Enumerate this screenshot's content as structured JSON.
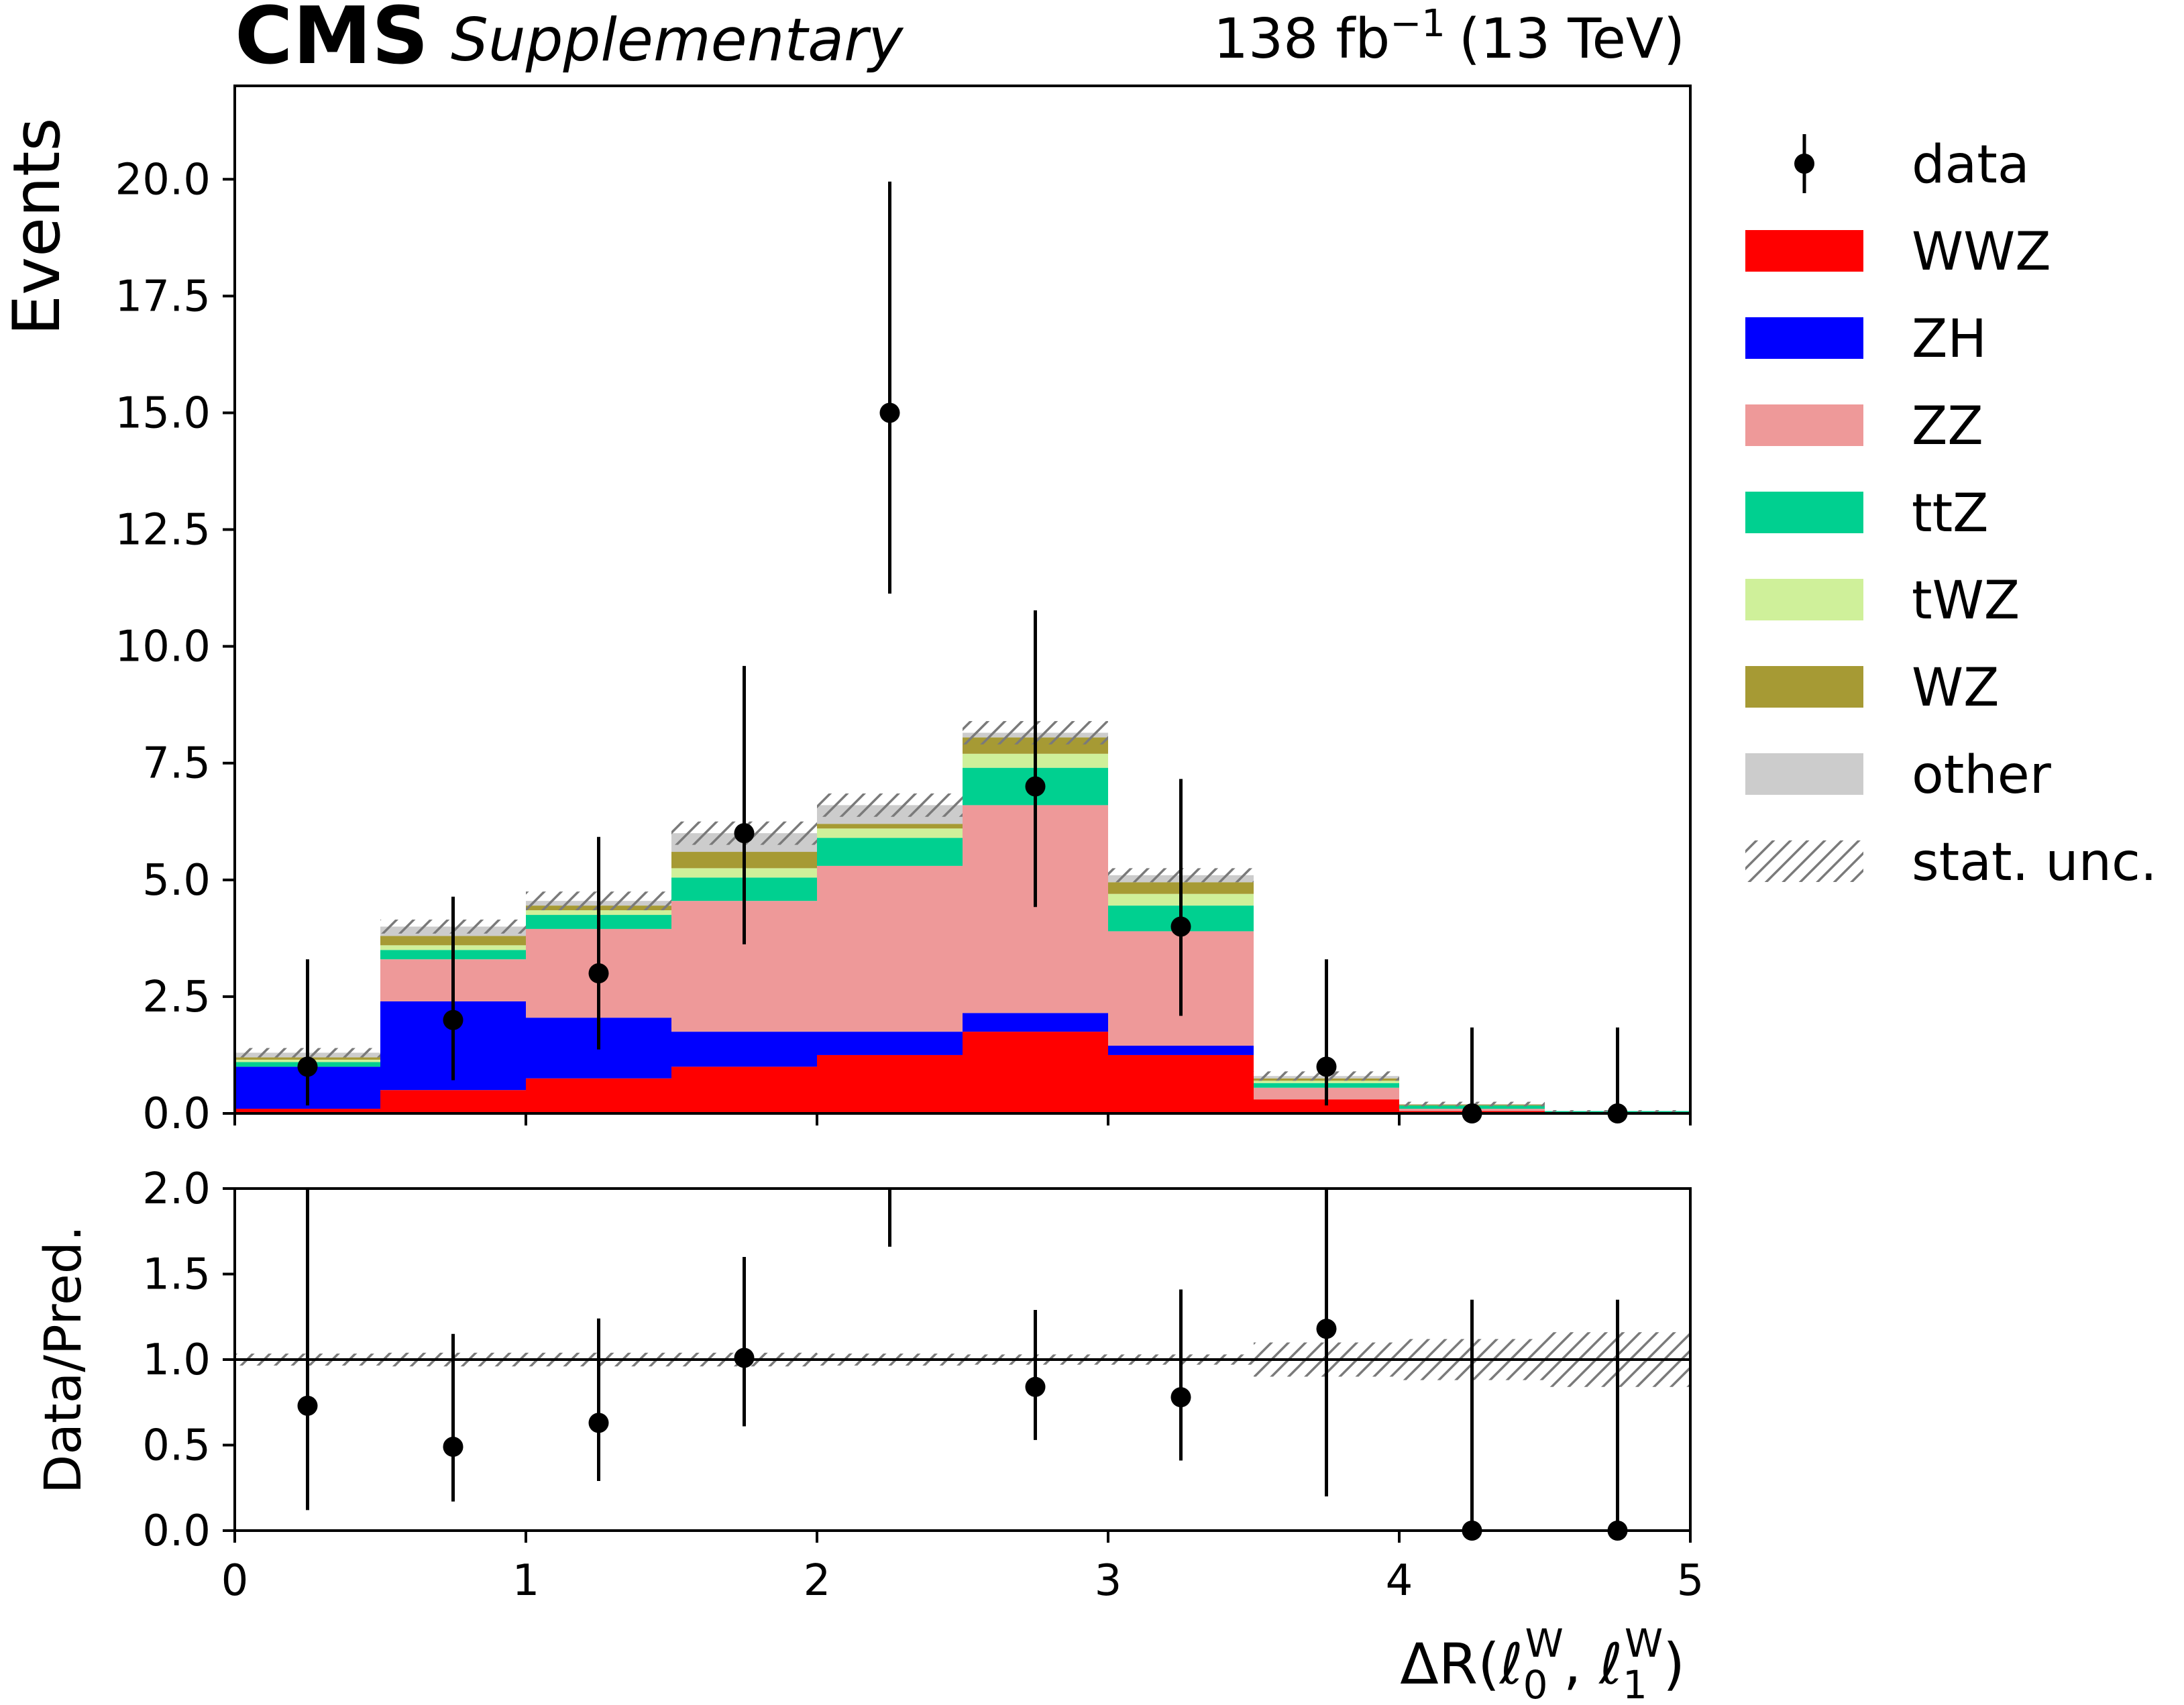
{
  "header": {
    "experiment": "CMS",
    "tag": "Supplementary",
    "lumi": "138 fb",
    "lumi_exp": "−1",
    "energy": "(13 TeV)"
  },
  "chart_data": {
    "type": "bar",
    "stacked": true,
    "bin_edges": [
      0,
      0.5,
      1,
      1.5,
      2,
      2.5,
      3,
      3.5,
      4,
      4.5,
      5
    ],
    "bin_centers": [
      0.25,
      0.75,
      1.25,
      1.75,
      2.25,
      2.75,
      3.25,
      3.75,
      4.25,
      4.75
    ],
    "xlim": [
      0,
      5
    ],
    "xticks": [
      "0",
      "1",
      "2",
      "3",
      "4",
      "5"
    ],
    "xlabel": {
      "main": "ΔR(ℓ",
      "sub0": "0",
      "sup0": "W",
      "mid": ",  ℓ",
      "sub1": "1",
      "sup1": "W",
      "end": ")"
    },
    "top_panel": {
      "ylabel": "Events",
      "ylim": [
        0,
        22
      ],
      "yticks": [
        "0.0",
        "2.5",
        "5.0",
        "7.5",
        "10.0",
        "12.5",
        "15.0",
        "17.5",
        "20.0"
      ],
      "series": [
        {
          "name": "WWZ",
          "color": "#ff0000",
          "values": [
            0.1,
            0.5,
            0.75,
            1.0,
            1.25,
            1.75,
            1.25,
            0.3,
            0.05,
            0.02
          ]
        },
        {
          "name": "ZH",
          "color": "#0000ff",
          "values": [
            0.9,
            1.9,
            1.3,
            0.75,
            0.5,
            0.4,
            0.2,
            0.0,
            0.0,
            0.0
          ]
        },
        {
          "name": "ZZ",
          "color": "#ee9999",
          "values": [
            0.0,
            0.9,
            1.9,
            2.8,
            3.55,
            4.45,
            2.45,
            0.25,
            0.05,
            0.0
          ]
        },
        {
          "name": "ttZ",
          "color": "#00d090",
          "values": [
            0.1,
            0.2,
            0.3,
            0.5,
            0.6,
            0.8,
            0.55,
            0.1,
            0.07,
            0.03
          ]
        },
        {
          "name": "tWZ",
          "color": "#cff09a",
          "values": [
            0.05,
            0.1,
            0.1,
            0.2,
            0.2,
            0.3,
            0.25,
            0.05,
            0.0,
            0.0
          ]
        },
        {
          "name": "WZ",
          "color": "#a69a34",
          "values": [
            0.05,
            0.2,
            0.1,
            0.35,
            0.1,
            0.35,
            0.25,
            0.05,
            0.02,
            0.0
          ]
        },
        {
          "name": "other",
          "color": "#cccccc",
          "values": [
            0.1,
            0.2,
            0.1,
            0.4,
            0.4,
            0.1,
            0.15,
            0.05,
            0.01,
            0.0
          ]
        }
      ],
      "stat_unc": [
        0.1,
        0.15,
        0.2,
        0.25,
        0.25,
        0.25,
        0.15,
        0.1,
        0.05,
        0.02
      ],
      "data": {
        "name": "data",
        "values": [
          1,
          2,
          3,
          6,
          15,
          7,
          4,
          1,
          0,
          0
        ],
        "err_low": [
          0.83,
          1.29,
          1.63,
          2.38,
          3.87,
          2.58,
          1.91,
          0.83,
          0.0,
          0.0
        ],
        "err_high": [
          2.3,
          2.64,
          2.92,
          3.58,
          4.95,
          3.77,
          3.16,
          2.3,
          1.84,
          1.84
        ]
      }
    },
    "bottom_panel": {
      "ylabel": "Data/Pred.",
      "ylim": [
        0,
        2
      ],
      "yticks": [
        "0.0",
        "0.5",
        "1.0",
        "1.5",
        "2.0"
      ],
      "reference_line": 1.0,
      "ratio": [
        0.73,
        0.49,
        0.63,
        1.01,
        2.23,
        0.84,
        0.78,
        1.18,
        0.0,
        0.0
      ],
      "err_low": [
        0.61,
        0.32,
        0.34,
        0.4,
        0.57,
        0.31,
        0.37,
        0.98,
        0.0,
        0.0
      ],
      "err_high": [
        1.6,
        0.66,
        0.61,
        0.59,
        0.73,
        0.45,
        0.63,
        2.7,
        1.35,
        1.35
      ],
      "unc_band": [
        0.035,
        0.04,
        0.04,
        0.04,
        0.035,
        0.03,
        0.03,
        0.1,
        0.12,
        0.16
      ]
    },
    "legend": {
      "placement": "right",
      "entries": [
        "data",
        "WWZ",
        "ZH",
        "ZZ",
        "ttZ",
        "tWZ",
        "WZ",
        "other",
        "stat. unc."
      ]
    }
  }
}
